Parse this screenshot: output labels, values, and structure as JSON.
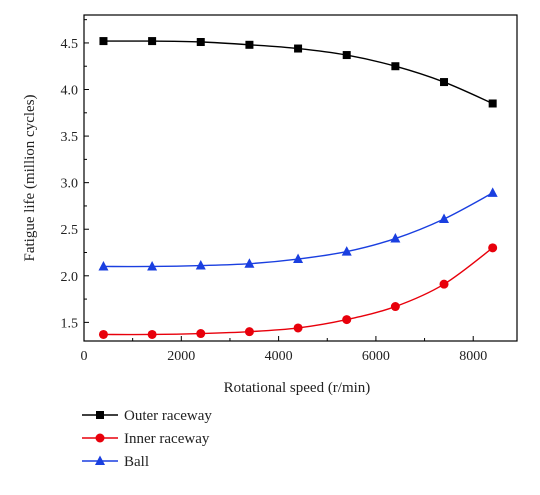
{
  "chart_data": {
    "type": "line",
    "title": "",
    "xlabel": "Rotational speed (r/min)",
    "ylabel": "Fatigue life (million cycles)",
    "xlim": [
      0,
      8900
    ],
    "ylim": [
      1.3,
      4.8
    ],
    "xticks": [
      0,
      2000,
      4000,
      6000,
      8000
    ],
    "xtick_labels": [
      "0",
      "2000",
      "4000",
      "6000",
      "8000"
    ],
    "yticks": [
      1.5,
      2.0,
      2.5,
      3.0,
      3.5,
      4.0,
      4.5
    ],
    "ytick_labels": [
      "1.5",
      "2.0",
      "2.5",
      "3.0",
      "3.5",
      "4.0",
      "4.5"
    ],
    "grid": false,
    "legend_position": "bottom-left, below plot",
    "x": [
      400,
      1400,
      2400,
      3400,
      4400,
      5400,
      6400,
      7400,
      8400
    ],
    "series": [
      {
        "name": "Outer raceway",
        "color": "#000000",
        "marker": "square",
        "values": [
          4.52,
          4.52,
          4.51,
          4.48,
          4.44,
          4.37,
          4.25,
          4.08,
          3.85
        ]
      },
      {
        "name": "Inner raceway",
        "color": "#e8000b",
        "marker": "circle",
        "values": [
          1.37,
          1.37,
          1.38,
          1.4,
          1.44,
          1.53,
          1.67,
          1.91,
          2.3
        ]
      },
      {
        "name": "Ball",
        "color": "#1a3fe0",
        "marker": "triangle",
        "values": [
          2.1,
          2.1,
          2.11,
          2.13,
          2.18,
          2.26,
          2.4,
          2.61,
          2.89
        ]
      }
    ]
  }
}
